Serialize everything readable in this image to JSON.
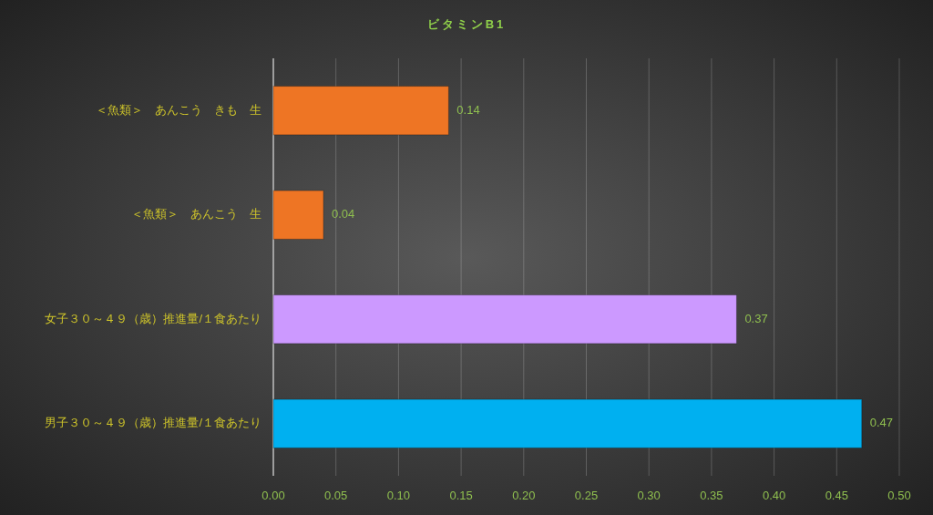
{
  "chart_data": {
    "type": "bar",
    "orientation": "horizontal",
    "title": "ビタミンB1",
    "categories": [
      "＜魚類＞　あんこう　きも　生",
      "＜魚類＞　あんこう　生",
      "女子３０～４９（歳）推進量/１食あたり",
      "男子３０～４９（歳）推進量/１食あたり"
    ],
    "values": [
      0.14,
      0.04,
      0.37,
      0.47
    ],
    "colors": [
      "#ee7524",
      "#ee7524",
      "#cc99ff",
      "#00b0f0"
    ],
    "xlim": [
      0,
      0.5
    ],
    "xticks": [
      {
        "value": 0,
        "label": "0.00"
      },
      {
        "value": 0.05,
        "label": "0.05"
      },
      {
        "value": 0.1,
        "label": "0.10"
      },
      {
        "value": 0.15,
        "label": "0.15"
      },
      {
        "value": 0.2,
        "label": "0.20"
      },
      {
        "value": 0.25,
        "label": "0.25"
      },
      {
        "value": 0.3,
        "label": "0.30"
      },
      {
        "value": 0.35,
        "label": "0.35"
      },
      {
        "value": 0.4,
        "label": "0.40"
      },
      {
        "value": 0.45,
        "label": "0.45"
      },
      {
        "value": 0.5,
        "label": "0.50"
      }
    ],
    "grid": "x",
    "data_labels": true
  }
}
